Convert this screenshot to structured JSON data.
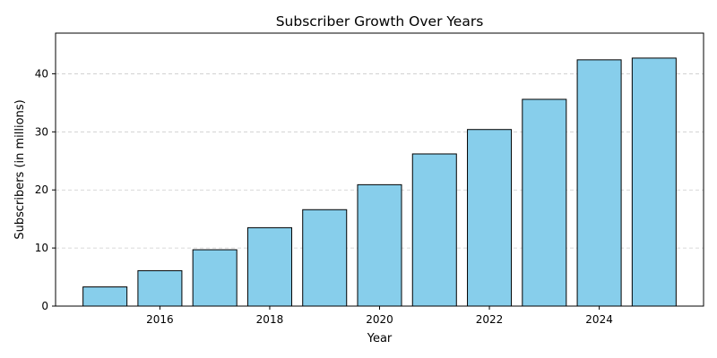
{
  "chart_data": {
    "type": "bar",
    "title": "Subscriber Growth Over Years",
    "xlabel": "Year",
    "ylabel": "Subscribers (in millions)",
    "x": [
      2015,
      2016,
      2017,
      2018,
      2019,
      2020,
      2021,
      2022,
      2023,
      2024,
      2025
    ],
    "values": [
      3.3,
      6.1,
      9.7,
      13.5,
      16.6,
      20.9,
      26.2,
      30.4,
      35.6,
      42.4,
      42.7
    ],
    "xlim": [
      2014.1,
      2025.9
    ],
    "ylim": [
      0,
      47
    ],
    "xticks": [
      2016,
      2018,
      2020,
      2022,
      2024
    ],
    "yticks": [
      0,
      10,
      20,
      30,
      40
    ],
    "grid": "y-dashed",
    "legend": "none",
    "colors": {
      "bar_fill": "#87CEEB",
      "bar_edge": "#000000",
      "grid": "#cccccc",
      "axis": "#000000"
    }
  }
}
